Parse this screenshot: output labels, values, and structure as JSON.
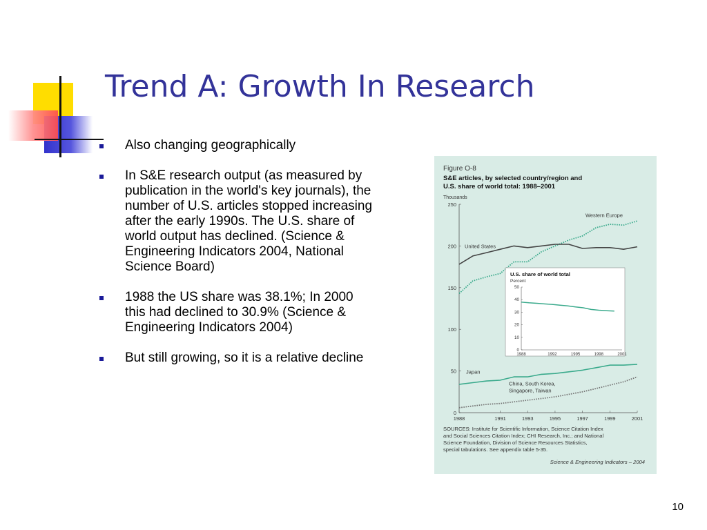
{
  "slide": {
    "title": "Trend A: Growth In Research",
    "bullets": [
      "Also changing geographically",
      "In S&E research output (as measured by publication in the world's key journals), the number of U.S. articles stopped increasing after the early 1990s. The U.S. share of world output has declined. (Science & Engineering Indicators 2004, National Science Board)",
      "1988 the US share was 38.1%; In 2000 this had declined to 30.9% (Science & Engineering Indicators 2004)",
      "But still growing, so it is a relative decline"
    ],
    "slide_number": "10"
  },
  "figure": {
    "label": "Figure O-8",
    "heading_line1": "S&E articles, by selected country/region and",
    "heading_line2": "U.S. share of world total: 1988–2001",
    "sources_line1": "SOURCES: Institute for Scientific Information, Science Citation Index",
    "sources_line2": "and Social Sciences Citation Index; CHI Research, Inc.; and National",
    "sources_line3": "Science Foundation, Division of Science Resources Statistics,",
    "sources_line4": "special tabulations. See appendix table 5-35.",
    "credit": "Science & Engineering Indicators – 2004"
  },
  "colors": {
    "title": "#333399",
    "bullet": "#1a1a99",
    "figure_bg": "#d9ece6",
    "teal_series": "#3aaa8c",
    "dark_series": "#444444",
    "deco_yellow": "#ffdd00",
    "deco_red": "#ff5555",
    "deco_blue": "#3333cc"
  },
  "chart_data": [
    {
      "type": "line",
      "x": [
        1988,
        1989,
        1990,
        1991,
        1992,
        1993,
        1994,
        1995,
        1996,
        1997,
        1998,
        1999,
        2000,
        2001
      ],
      "xticks": [
        "1988",
        "1991",
        "1993",
        "1995",
        "1997",
        "1999",
        "2001"
      ],
      "ylabel": "Thousands",
      "ylim": [
        0,
        250
      ],
      "yticks": [
        "0",
        "50",
        "100",
        "150",
        "200",
        "250"
      ],
      "grid": false,
      "legend": "inline labels",
      "series": [
        {
          "name": "Western Europe",
          "values": [
            143,
            158,
            163,
            167,
            181,
            181,
            193,
            200,
            207,
            212,
            222,
            226,
            225,
            230
          ],
          "color": "#3aaa8c",
          "style": "dotted"
        },
        {
          "name": "United States",
          "values": [
            178,
            188,
            192,
            196,
            200,
            198,
            200,
            202,
            202,
            197,
            198,
            198,
            196,
            199
          ],
          "color": "#444444",
          "style": "solid"
        },
        {
          "name": "Japan",
          "values": [
            34,
            36,
            38,
            39,
            43,
            43,
            46,
            47,
            49,
            51,
            54,
            57,
            57,
            58
          ],
          "color": "#3aaa8c",
          "style": "solid"
        },
        {
          "name": "China, South Korea, Singapore, Taiwan",
          "values": [
            6,
            8,
            10,
            11,
            13,
            15,
            17,
            19,
            22,
            25,
            29,
            33,
            37,
            43
          ],
          "color": "#777777",
          "style": "dotted"
        }
      ]
    },
    {
      "type": "line",
      "title": "U.S. share of world total",
      "ylabel": "Percent",
      "x": [
        1988,
        1989,
        1990,
        1991,
        1992,
        1993,
        1994,
        1995,
        1996,
        1997,
        1998,
        1999,
        2000
      ],
      "xticks": [
        "1988",
        "1992",
        "1995",
        "1998",
        "2001"
      ],
      "ylim": [
        0,
        50
      ],
      "yticks": [
        "0",
        "10",
        "20",
        "30",
        "40",
        "50"
      ],
      "series": [
        {
          "values": [
            38.1,
            37.5,
            37.1,
            36.6,
            36.2,
            35.6,
            35.0,
            34.2,
            33.5,
            32.2,
            31.6,
            31.2,
            30.9
          ],
          "color": "#3aaa8c"
        }
      ]
    }
  ]
}
